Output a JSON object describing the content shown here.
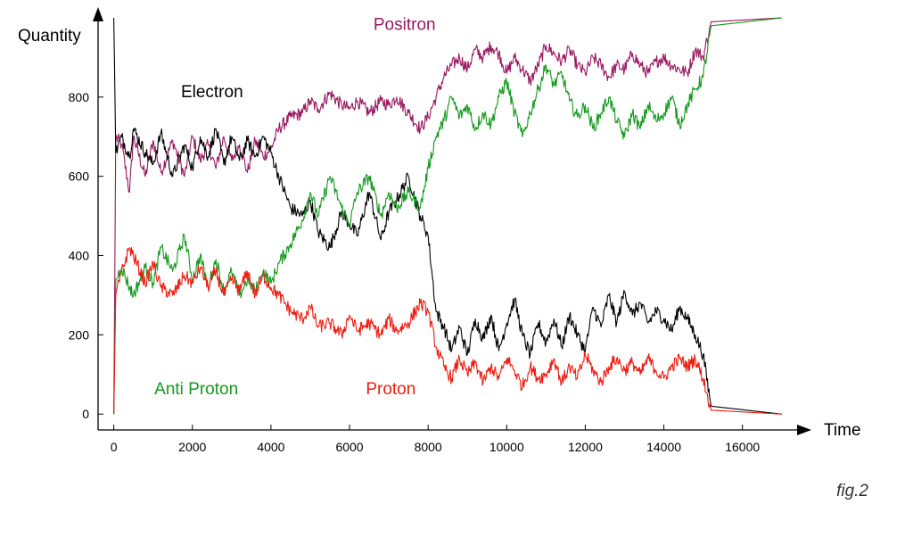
{
  "caption": "fig.2",
  "chart_data": {
    "type": "line",
    "xlabel": "Time",
    "ylabel": "Quantity",
    "xlim": [
      -400,
      17300
    ],
    "ylim": [
      -40,
      1000
    ],
    "xticks": [
      0,
      2000,
      4000,
      6000,
      8000,
      10000,
      12000,
      14000,
      16000
    ],
    "yticks": [
      0,
      200,
      400,
      600,
      800
    ],
    "grid": false,
    "series": [
      {
        "name": "Positron",
        "color": "#99195f",
        "points": [
          [
            0,
            0
          ],
          [
            50,
            700
          ],
          [
            200,
            680
          ],
          [
            400,
            560
          ],
          [
            500,
            700
          ],
          [
            800,
            600
          ],
          [
            1000,
            690
          ],
          [
            1200,
            610
          ],
          [
            1500,
            690
          ],
          [
            1800,
            600
          ],
          [
            2000,
            700
          ],
          [
            2200,
            640
          ],
          [
            2400,
            680
          ],
          [
            2600,
            620
          ],
          [
            2800,
            700
          ],
          [
            3000,
            640
          ],
          [
            3200,
            680
          ],
          [
            3400,
            610
          ],
          [
            3600,
            690
          ],
          [
            3800,
            650
          ],
          [
            4000,
            670
          ],
          [
            4200,
            720
          ],
          [
            4500,
            750
          ],
          [
            4800,
            760
          ],
          [
            5000,
            790
          ],
          [
            5200,
            770
          ],
          [
            5500,
            810
          ],
          [
            5800,
            780
          ],
          [
            6000,
            770
          ],
          [
            6200,
            790
          ],
          [
            6500,
            760
          ],
          [
            6800,
            790
          ],
          [
            7000,
            780
          ],
          [
            7200,
            800
          ],
          [
            7500,
            760
          ],
          [
            7800,
            720
          ],
          [
            8000,
            750
          ],
          [
            8200,
            800
          ],
          [
            8400,
            850
          ],
          [
            8600,
            880
          ],
          [
            8800,
            900
          ],
          [
            9000,
            870
          ],
          [
            9200,
            920
          ],
          [
            9400,
            900
          ],
          [
            9600,
            930
          ],
          [
            9800,
            910
          ],
          [
            10000,
            860
          ],
          [
            10200,
            900
          ],
          [
            10400,
            870
          ],
          [
            10600,
            840
          ],
          [
            10800,
            880
          ],
          [
            11000,
            930
          ],
          [
            11200,
            910
          ],
          [
            11400,
            890
          ],
          [
            11600,
            920
          ],
          [
            11800,
            880
          ],
          [
            12000,
            860
          ],
          [
            12200,
            900
          ],
          [
            12400,
            880
          ],
          [
            12600,
            850
          ],
          [
            12800,
            880
          ],
          [
            13000,
            870
          ],
          [
            13200,
            910
          ],
          [
            13400,
            880
          ],
          [
            13600,
            860
          ],
          [
            13800,
            890
          ],
          [
            14000,
            900
          ],
          [
            14200,
            880
          ],
          [
            14400,
            870
          ],
          [
            14600,
            860
          ],
          [
            14800,
            920
          ],
          [
            15000,
            900
          ],
          [
            15200,
            990
          ],
          [
            17000,
            1000
          ]
        ]
      },
      {
        "name": "Electron",
        "color": "#000000",
        "points": [
          [
            0,
            1000
          ],
          [
            50,
            660
          ],
          [
            200,
            700
          ],
          [
            400,
            650
          ],
          [
            500,
            720
          ],
          [
            800,
            660
          ],
          [
            1000,
            630
          ],
          [
            1200,
            710
          ],
          [
            1500,
            600
          ],
          [
            1800,
            680
          ],
          [
            2000,
            620
          ],
          [
            2200,
            700
          ],
          [
            2400,
            650
          ],
          [
            2600,
            720
          ],
          [
            2800,
            630
          ],
          [
            3000,
            700
          ],
          [
            3200,
            640
          ],
          [
            3400,
            690
          ],
          [
            3600,
            650
          ],
          [
            3800,
            700
          ],
          [
            4000,
            660
          ],
          [
            4200,
            600
          ],
          [
            4500,
            520
          ],
          [
            4800,
            500
          ],
          [
            5000,
            540
          ],
          [
            5200,
            460
          ],
          [
            5500,
            420
          ],
          [
            5800,
            510
          ],
          [
            6000,
            480
          ],
          [
            6200,
            450
          ],
          [
            6500,
            560
          ],
          [
            6800,
            440
          ],
          [
            7000,
            510
          ],
          [
            7200,
            540
          ],
          [
            7500,
            600
          ],
          [
            7800,
            500
          ],
          [
            8000,
            450
          ],
          [
            8200,
            260
          ],
          [
            8400,
            220
          ],
          [
            8600,
            160
          ],
          [
            8800,
            220
          ],
          [
            9000,
            150
          ],
          [
            9200,
            240
          ],
          [
            9400,
            190
          ],
          [
            9600,
            250
          ],
          [
            9800,
            160
          ],
          [
            10000,
            230
          ],
          [
            10200,
            290
          ],
          [
            10400,
            200
          ],
          [
            10600,
            150
          ],
          [
            10800,
            230
          ],
          [
            11000,
            180
          ],
          [
            11200,
            240
          ],
          [
            11400,
            170
          ],
          [
            11600,
            250
          ],
          [
            11800,
            200
          ],
          [
            12000,
            160
          ],
          [
            12200,
            270
          ],
          [
            12400,
            220
          ],
          [
            12600,
            300
          ],
          [
            12800,
            230
          ],
          [
            13000,
            310
          ],
          [
            13200,
            250
          ],
          [
            13400,
            280
          ],
          [
            13600,
            230
          ],
          [
            13800,
            260
          ],
          [
            14000,
            240
          ],
          [
            14200,
            210
          ],
          [
            14400,
            270
          ],
          [
            14600,
            240
          ],
          [
            14800,
            200
          ],
          [
            15000,
            150
          ],
          [
            15200,
            20
          ],
          [
            17000,
            0
          ]
        ]
      },
      {
        "name": "Anti Proton",
        "color": "#14991e",
        "points": [
          [
            0,
            0
          ],
          [
            50,
            340
          ],
          [
            200,
            370
          ],
          [
            400,
            320
          ],
          [
            500,
            300
          ],
          [
            800,
            370
          ],
          [
            1000,
            330
          ],
          [
            1200,
            420
          ],
          [
            1500,
            360
          ],
          [
            1800,
            450
          ],
          [
            2000,
            340
          ],
          [
            2200,
            400
          ],
          [
            2400,
            320
          ],
          [
            2600,
            390
          ],
          [
            2800,
            310
          ],
          [
            3000,
            360
          ],
          [
            3200,
            300
          ],
          [
            3400,
            340
          ],
          [
            3600,
            310
          ],
          [
            3800,
            360
          ],
          [
            4000,
            330
          ],
          [
            4200,
            380
          ],
          [
            4500,
            430
          ],
          [
            4800,
            490
          ],
          [
            5000,
            560
          ],
          [
            5200,
            500
          ],
          [
            5500,
            600
          ],
          [
            5800,
            520
          ],
          [
            6000,
            480
          ],
          [
            6200,
            560
          ],
          [
            6500,
            600
          ],
          [
            6800,
            500
          ],
          [
            7000,
            560
          ],
          [
            7200,
            520
          ],
          [
            7500,
            560
          ],
          [
            7800,
            520
          ],
          [
            8000,
            620
          ],
          [
            8200,
            700
          ],
          [
            8400,
            740
          ],
          [
            8600,
            800
          ],
          [
            8800,
            750
          ],
          [
            9000,
            780
          ],
          [
            9200,
            720
          ],
          [
            9400,
            760
          ],
          [
            9600,
            730
          ],
          [
            9800,
            800
          ],
          [
            10000,
            840
          ],
          [
            10200,
            760
          ],
          [
            10400,
            700
          ],
          [
            10600,
            760
          ],
          [
            10800,
            820
          ],
          [
            11000,
            880
          ],
          [
            11200,
            830
          ],
          [
            11400,
            860
          ],
          [
            11600,
            790
          ],
          [
            11800,
            750
          ],
          [
            12000,
            780
          ],
          [
            12200,
            720
          ],
          [
            12400,
            760
          ],
          [
            12600,
            800
          ],
          [
            12800,
            740
          ],
          [
            13000,
            700
          ],
          [
            13200,
            760
          ],
          [
            13400,
            720
          ],
          [
            13600,
            780
          ],
          [
            13800,
            740
          ],
          [
            14000,
            760
          ],
          [
            14200,
            800
          ],
          [
            14400,
            730
          ],
          [
            14600,
            780
          ],
          [
            14800,
            820
          ],
          [
            15000,
            850
          ],
          [
            15200,
            980
          ],
          [
            17000,
            1000
          ]
        ]
      },
      {
        "name": "Proton",
        "color": "#ee1c12",
        "points": [
          [
            0,
            0
          ],
          [
            50,
            300
          ],
          [
            200,
            360
          ],
          [
            400,
            420
          ],
          [
            500,
            400
          ],
          [
            800,
            330
          ],
          [
            1000,
            380
          ],
          [
            1200,
            320
          ],
          [
            1500,
            300
          ],
          [
            1800,
            350
          ],
          [
            2000,
            330
          ],
          [
            2200,
            370
          ],
          [
            2400,
            320
          ],
          [
            2600,
            360
          ],
          [
            2800,
            300
          ],
          [
            3000,
            340
          ],
          [
            3200,
            310
          ],
          [
            3400,
            360
          ],
          [
            3600,
            300
          ],
          [
            3800,
            350
          ],
          [
            4000,
            320
          ],
          [
            4200,
            300
          ],
          [
            4500,
            260
          ],
          [
            4800,
            240
          ],
          [
            5000,
            270
          ],
          [
            5200,
            220
          ],
          [
            5500,
            230
          ],
          [
            5800,
            200
          ],
          [
            6000,
            250
          ],
          [
            6200,
            210
          ],
          [
            6500,
            230
          ],
          [
            6800,
            200
          ],
          [
            7000,
            240
          ],
          [
            7200,
            210
          ],
          [
            7500,
            230
          ],
          [
            7800,
            280
          ],
          [
            8000,
            260
          ],
          [
            8200,
            170
          ],
          [
            8400,
            120
          ],
          [
            8600,
            90
          ],
          [
            8800,
            140
          ],
          [
            9000,
            100
          ],
          [
            9200,
            130
          ],
          [
            9400,
            80
          ],
          [
            9600,
            120
          ],
          [
            9800,
            90
          ],
          [
            10000,
            140
          ],
          [
            10200,
            110
          ],
          [
            10400,
            70
          ],
          [
            10600,
            120
          ],
          [
            10800,
            90
          ],
          [
            11000,
            100
          ],
          [
            11200,
            140
          ],
          [
            11400,
            80
          ],
          [
            11600,
            120
          ],
          [
            11800,
            90
          ],
          [
            12000,
            150
          ],
          [
            12200,
            110
          ],
          [
            12400,
            80
          ],
          [
            12600,
            120
          ],
          [
            12800,
            140
          ],
          [
            13000,
            110
          ],
          [
            13200,
            130
          ],
          [
            13400,
            100
          ],
          [
            13600,
            140
          ],
          [
            13800,
            110
          ],
          [
            14000,
            90
          ],
          [
            14200,
            120
          ],
          [
            14400,
            140
          ],
          [
            14600,
            120
          ],
          [
            14800,
            140
          ],
          [
            15000,
            90
          ],
          [
            15200,
            10
          ],
          [
            17000,
            0
          ]
        ]
      }
    ],
    "annotations": [
      {
        "text": "Positron",
        "x": 7400,
        "y": 970,
        "color": "#99195f"
      },
      {
        "text": "Electron",
        "x": 2500,
        "y": 800,
        "color": "#000000"
      },
      {
        "text": "Anti Proton",
        "x": 2100,
        "y": 50,
        "color": "#14991e"
      },
      {
        "text": "Proton",
        "x": 7050,
        "y": 50,
        "color": "#ee1c12"
      }
    ]
  }
}
